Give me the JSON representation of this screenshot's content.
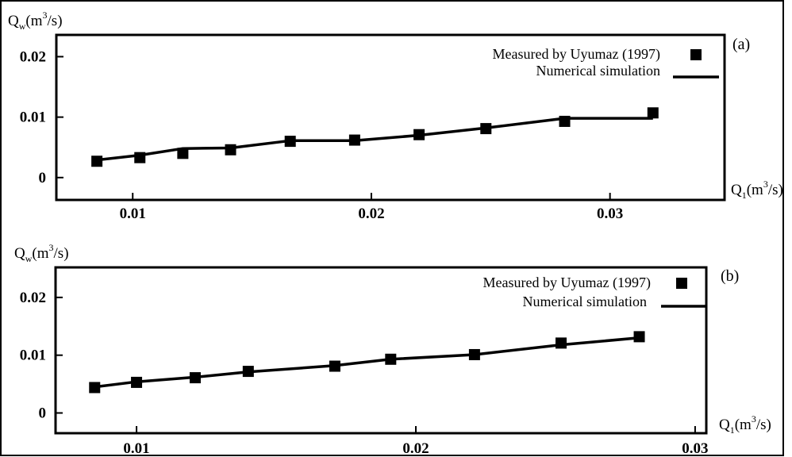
{
  "chart_data": [
    {
      "type": "line",
      "panel_label": "(a)",
      "ylabel": {
        "main": "Q",
        "sub": "w",
        "open": "(m",
        "sup": "3",
        "close": "/s)"
      },
      "xlabel": {
        "main": "Q",
        "sub": "1",
        "open": "(m",
        "sup": "3",
        "close": "/s)"
      },
      "xlim": [
        0.0068,
        0.0348
      ],
      "ylim": [
        -0.0037,
        0.0236
      ],
      "xticks": [
        {
          "value": 0.01,
          "label": "0.01"
        },
        {
          "value": 0.02,
          "label": "0.02"
        },
        {
          "value": 0.03,
          "label": "0.03"
        }
      ],
      "yticks": [
        {
          "value": 0,
          "label": "0"
        },
        {
          "value": 0.01,
          "label": "0.01"
        },
        {
          "value": 0.02,
          "label": "0.02"
        }
      ],
      "legend": {
        "position": "top-right",
        "measured": "Measured by Uyumaz (1997)",
        "simulation": "Numerical simulation"
      },
      "series": [
        {
          "name": "Measured by Uyumaz (1997)",
          "kind": "markers",
          "x": [
            0.0085,
            0.0103,
            0.0121,
            0.0141,
            0.0166,
            0.0193,
            0.022,
            0.0248,
            0.0281,
            0.0318
          ],
          "y": [
            0.0027,
            0.0033,
            0.004,
            0.0046,
            0.006,
            0.0062,
            0.0071,
            0.0081,
            0.0093,
            0.0107
          ]
        },
        {
          "name": "Numerical simulation",
          "kind": "line",
          "x": [
            0.0085,
            0.0103,
            0.0121,
            0.0141,
            0.0166,
            0.0193,
            0.022,
            0.0248,
            0.0281,
            0.0318
          ],
          "y": [
            0.0029,
            0.0037,
            0.0048,
            0.0049,
            0.0061,
            0.0061,
            0.007,
            0.0082,
            0.0098,
            0.0098
          ]
        }
      ]
    },
    {
      "type": "line",
      "panel_label": "(b)",
      "ylabel": {
        "main": "Q",
        "sub": "w",
        "open": "(m",
        "sup": "3",
        "close": "/s)"
      },
      "xlabel": {
        "main": "Q",
        "sub": "1",
        "open": "(m",
        "sup": "3",
        "close": "/s)"
      },
      "xlim": [
        0.0071,
        0.0304
      ],
      "ylim": [
        -0.0035,
        0.0252
      ],
      "xticks": [
        {
          "value": 0.01,
          "label": "0.01"
        },
        {
          "value": 0.02,
          "label": "0.02"
        },
        {
          "value": 0.03,
          "label": "0.03"
        }
      ],
      "yticks": [
        {
          "value": 0,
          "label": "0"
        },
        {
          "value": 0.01,
          "label": "0.01"
        },
        {
          "value": 0.02,
          "label": "0.02"
        }
      ],
      "legend": {
        "position": "top-right",
        "measured": "Measured by Uyumaz (1997)",
        "simulation": "Numerical simulation"
      },
      "series": [
        {
          "name": "Measured by Uyumaz (1997)",
          "kind": "markers",
          "x": [
            0.0085,
            0.01,
            0.0121,
            0.014,
            0.0171,
            0.0191,
            0.0221,
            0.0252,
            0.028
          ],
          "y": [
            0.0044,
            0.0053,
            0.0061,
            0.0072,
            0.0081,
            0.0093,
            0.0101,
            0.0121,
            0.0132
          ]
        },
        {
          "name": "Numerical simulation",
          "kind": "line",
          "x": [
            0.0085,
            0.01,
            0.0121,
            0.014,
            0.0171,
            0.0191,
            0.0221,
            0.0252,
            0.028
          ],
          "y": [
            0.0045,
            0.0054,
            0.0062,
            0.0071,
            0.0082,
            0.0093,
            0.0101,
            0.0118,
            0.013
          ]
        }
      ]
    }
  ]
}
